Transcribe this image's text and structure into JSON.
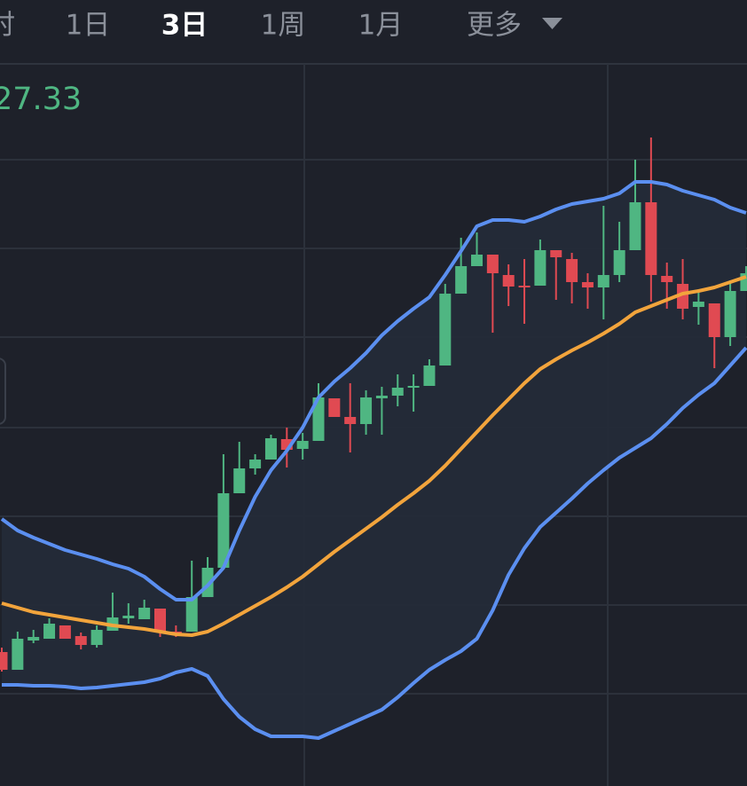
{
  "tabs": [
    "时",
    "1日",
    "3日",
    "1周",
    "1月",
    "更多"
  ],
  "selected_tab": 2,
  "price_label": "27.33",
  "chart_data": {
    "type": "candlestick",
    "ylim": [
      0,
      814
    ],
    "up_color": "#4fb682",
    "down_color": "#e04a52",
    "open": [
      151,
      131,
      164,
      166,
      181,
      169,
      159,
      175,
      189,
      188,
      200,
      174,
      174,
      213,
      246,
      330,
      358,
      368,
      391,
      380,
      389,
      437,
      416,
      408,
      437,
      440,
      449,
      451,
      474,
      555,
      586,
      599,
      576,
      564,
      564,
      604,
      594,
      568,
      562,
      576,
      604,
      658,
      575,
      566,
      540,
      544,
      506,
      558
    ],
    "close": [
      131,
      166,
      168,
      183,
      166,
      159,
      176,
      190,
      192,
      201,
      174,
      172,
      213,
      246,
      330,
      358,
      368,
      392,
      379,
      389,
      438,
      416,
      408,
      438,
      440,
      449,
      451,
      474,
      555,
      586,
      599,
      578,
      563,
      562,
      604,
      596,
      568,
      562,
      576,
      604,
      658,
      576,
      568,
      538,
      546,
      506,
      558,
      578
    ],
    "high": [
      156,
      174,
      176,
      189,
      181,
      173,
      181,
      218,
      206,
      210,
      200,
      181,
      254,
      258,
      374,
      388,
      374,
      396,
      404,
      398,
      454,
      437,
      454,
      446,
      450,
      464,
      464,
      481,
      566,
      618,
      624,
      599,
      588,
      594,
      616,
      604,
      601,
      578,
      654,
      636,
      706,
      731,
      590,
      594,
      560,
      544,
      570,
      586
    ],
    "low": [
      129,
      131,
      161,
      166,
      166,
      154,
      156,
      175,
      183,
      188,
      168,
      168,
      174,
      213,
      246,
      330,
      351,
      368,
      359,
      368,
      389,
      416,
      376,
      396,
      396,
      428,
      422,
      451,
      474,
      555,
      586,
      511,
      541,
      521,
      564,
      548,
      544,
      538,
      526,
      568,
      604,
      546,
      538,
      526,
      520,
      471,
      496,
      558
    ],
    "lines": [
      {
        "color": "#5b8ff0",
        "values": [
          301,
          288,
          280,
          273,
          266,
          261,
          256,
          250,
          245,
          236,
          222,
          210,
          210,
          226,
          246,
          288,
          326,
          356,
          378,
          404,
          438,
          456,
          471,
          488,
          508,
          524,
          538,
          551,
          576,
          603,
          631,
          638,
          638,
          636,
          642,
          650,
          656,
          659,
          662,
          668,
          681,
          681,
          678,
          671,
          666,
          661,
          652,
          646
        ]
      },
      {
        "color": "#f2a43c",
        "values": [
          206,
          201,
          196,
          193,
          190,
          187,
          184,
          181,
          179,
          177,
          174,
          171,
          170,
          174,
          183,
          193,
          203,
          213,
          224,
          236,
          250,
          264,
          277,
          290,
          303,
          317,
          330,
          344,
          361,
          380,
          399,
          418,
          436,
          454,
          470,
          481,
          491,
          500,
          510,
          521,
          534,
          541,
          548,
          555,
          558,
          562,
          568,
          574
        ]
      },
      {
        "color": "#5b8ff0",
        "values": [
          114,
          114,
          113,
          113,
          112,
          110,
          111,
          113,
          115,
          117,
          121,
          128,
          132,
          124,
          98,
          78,
          64,
          56,
          56,
          56,
          54,
          62,
          70,
          78,
          86,
          100,
          116,
          131,
          142,
          152,
          166,
          198,
          238,
          268,
          292,
          308,
          324,
          341,
          356,
          370,
          381,
          392,
          408,
          426,
          441,
          454,
          474,
          494
        ]
      }
    ]
  }
}
